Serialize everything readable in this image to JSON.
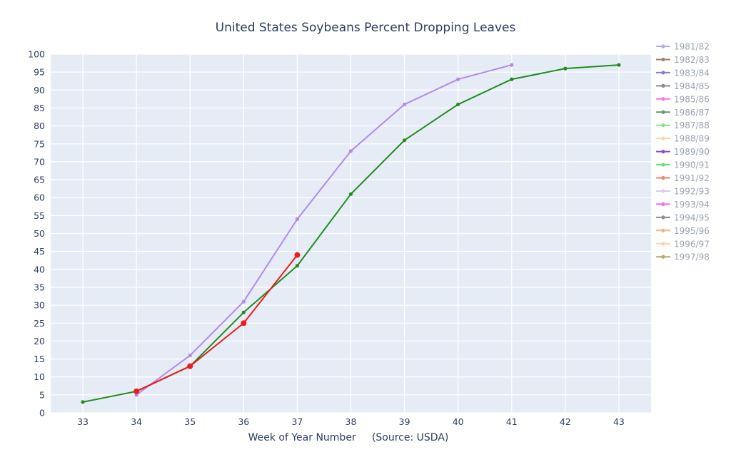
{
  "chart_data": {
    "type": "line",
    "title": "United States Soybeans Percent Dropping Leaves",
    "xlabel": "Week of Year Number     (Source: USDA)",
    "ylabel": "",
    "xlim": [
      32.4,
      43.6
    ],
    "ylim": [
      0,
      100
    ],
    "x_ticks": [
      33,
      34,
      35,
      36,
      37,
      38,
      39,
      40,
      41,
      42,
      43
    ],
    "y_ticks": [
      0,
      5,
      10,
      15,
      20,
      25,
      30,
      35,
      40,
      45,
      50,
      55,
      60,
      65,
      70,
      75,
      80,
      85,
      90,
      95,
      100
    ],
    "grid": true,
    "legend_position": "right",
    "plot_background": "#e5ecf6",
    "legend": [
      {
        "label": "1981/82",
        "color": "#b9a7f0"
      },
      {
        "label": "1982/83",
        "color": "#a0806a"
      },
      {
        "label": "1983/84",
        "color": "#8e7cc3"
      },
      {
        "label": "1984/85",
        "color": "#8a8a8a"
      },
      {
        "label": "1985/86",
        "color": "#f07ad8"
      },
      {
        "label": "1986/87",
        "color": "#5f9b72"
      },
      {
        "label": "1987/88",
        "color": "#8fe08a"
      },
      {
        "label": "1988/89",
        "color": "#f5d6b0"
      },
      {
        "label": "1989/90",
        "color": "#8a4fc9"
      },
      {
        "label": "1990/91",
        "color": "#6fdc7a"
      },
      {
        "label": "1991/92",
        "color": "#e88a6a"
      },
      {
        "label": "1992/93",
        "color": "#d9c9f5"
      },
      {
        "label": "1993/94",
        "color": "#ef6fe0"
      },
      {
        "label": "1994/95",
        "color": "#8c8c96"
      },
      {
        "label": "1995/96",
        "color": "#f0b48a"
      },
      {
        "label": "1996/97",
        "color": "#f7d2b2"
      },
      {
        "label": "1997/98",
        "color": "#b7a86a"
      }
    ],
    "series": [
      {
        "color": "#b388eb",
        "x": [
          34,
          35,
          36,
          37,
          38,
          39,
          40,
          41
        ],
        "values": [
          5,
          16,
          31,
          54,
          73,
          86,
          93,
          97
        ]
      },
      {
        "color": "#228b22",
        "x": [
          33,
          34,
          35,
          36,
          37,
          38,
          39,
          40,
          41,
          42,
          43
        ],
        "values": [
          3,
          6,
          13,
          28,
          41,
          61,
          76,
          86,
          93,
          96,
          97
        ]
      },
      {
        "color": "#ee1c1c",
        "x": [
          34,
          35,
          36,
          37
        ],
        "values": [
          6,
          13,
          25,
          44
        ],
        "large_markers": true
      }
    ]
  }
}
